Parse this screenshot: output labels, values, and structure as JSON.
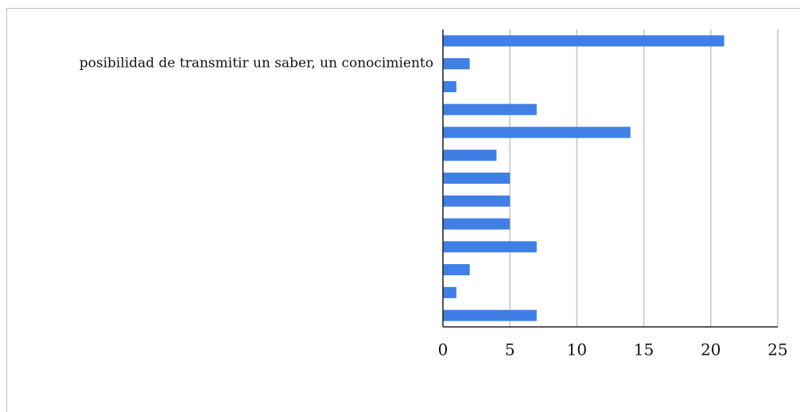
{
  "chart_data": {
    "type": "bar",
    "orientation": "horizontal",
    "categories": [
      null,
      "posibilidad de transmitir un saber, un conocimiento",
      null,
      null,
      null,
      null,
      null,
      null,
      null,
      null,
      null,
      null,
      null
    ],
    "values": [
      21,
      2,
      1,
      7,
      14,
      4,
      5,
      5,
      5,
      7,
      2,
      1,
      7
    ],
    "color": "#3f7fe6",
    "xlim": [
      0,
      25
    ],
    "xticks": [
      0,
      5,
      10,
      15,
      20,
      25
    ],
    "grid": true
  }
}
